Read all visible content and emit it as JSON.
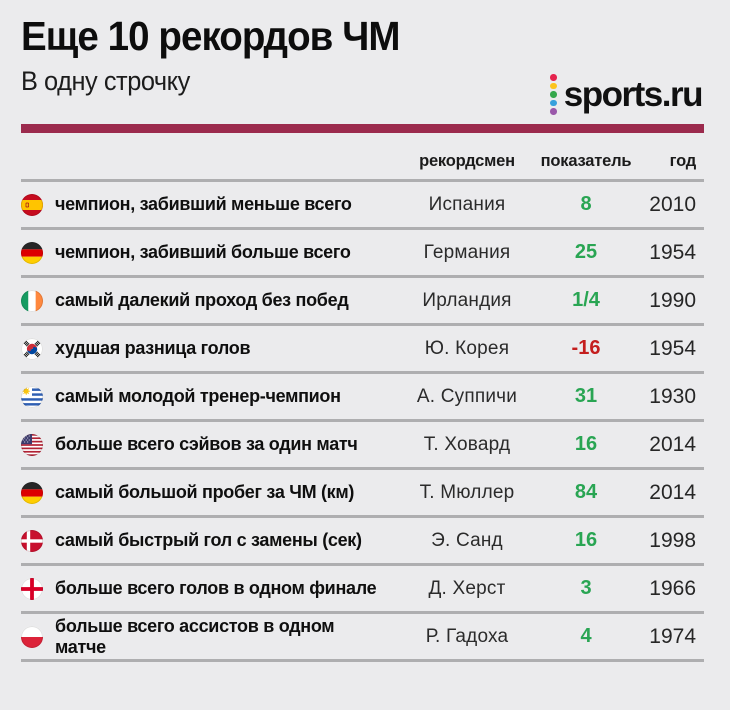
{
  "header": {
    "title": "Еще 10 рекордов ЧМ",
    "subtitle": "В одну строчку",
    "divider_color": "#9b2a4d",
    "logo": {
      "text": "sports.ru",
      "dot_colors": [
        "#e5234e",
        "#fcc41e",
        "#35a84c",
        "#37a0dc",
        "#9a58aa"
      ]
    }
  },
  "chart_data": {
    "type": "table",
    "title": "Еще 10 рекордов ЧМ",
    "subtitle": "В одну строчку",
    "columns": [
      "рекордсмен",
      "показатель",
      "год"
    ],
    "rows": [
      {
        "flag": "spain-flag",
        "record": "чемпион, забивший меньше всего",
        "holder": "Испания",
        "value": "8",
        "trend": "positive",
        "year": "2010"
      },
      {
        "flag": "germany-flag",
        "record": "чемпион, забивший больше всего",
        "holder": "Германия",
        "value": "25",
        "trend": "positive",
        "year": "1954"
      },
      {
        "flag": "ireland-flag",
        "record": "самый далекий проход без побед",
        "holder": "Ирландия",
        "value": "1/4",
        "trend": "positive",
        "year": "1990"
      },
      {
        "flag": "south-korea-flag",
        "record": "худшая разница голов",
        "holder": "Ю. Корея",
        "value": "-16",
        "trend": "negative",
        "year": "1954"
      },
      {
        "flag": "uruguay-flag",
        "record": "самый молодой тренер-чемпион",
        "holder": "А. Суппичи",
        "value": "31",
        "trend": "positive",
        "year": "1930"
      },
      {
        "flag": "usa-flag",
        "record": "больше всего сэйвов за один матч",
        "holder": "Т. Ховард",
        "value": "16",
        "trend": "positive",
        "year": "2014"
      },
      {
        "flag": "germany-flag",
        "record": "самый большой пробег за ЧМ (км)",
        "holder": "Т. Мюллер",
        "value": "84",
        "trend": "positive",
        "year": "2014"
      },
      {
        "flag": "denmark-flag",
        "record": "самый быстрый гол с замены (сек)",
        "holder": "Э. Санд",
        "value": "16",
        "trend": "positive",
        "year": "1998"
      },
      {
        "flag": "england-flag",
        "record": "больше всего голов в одном финале",
        "holder": "Д. Херст",
        "value": "3",
        "trend": "positive",
        "year": "1966"
      },
      {
        "flag": "poland-flag",
        "record": "больше всего ассистов в одном матче",
        "holder": "Р. Гадоха",
        "value": "4",
        "trend": "positive",
        "year": "1974"
      }
    ]
  },
  "colors": {
    "positive": "#29a553",
    "negative": "#c41e1e",
    "separator": "#aeaeb0",
    "background": "#ebebed"
  }
}
